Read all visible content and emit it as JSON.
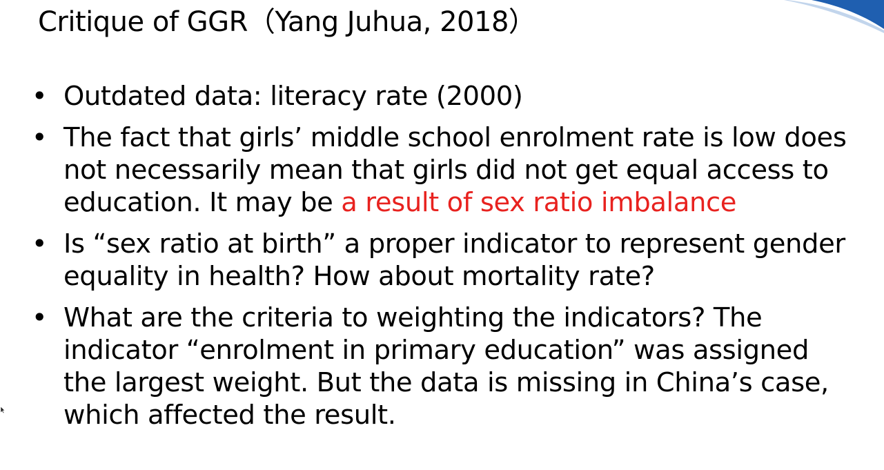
{
  "slide": {
    "title": "Critique of GGR（Yang Juhua, 2018）",
    "accent_color": "#1f5fb0",
    "highlight_color": "#e8221f",
    "bullet_glyph": "•",
    "bullets": [
      {
        "text": "Outdated data: literacy rate (2000)"
      },
      {
        "text_before": "The fact that girls’ middle school enrolment rate is low does not necessarily mean that girls did not get equal access to education. It may be ",
        "highlight": "a result of sex ratio imbalance"
      },
      {
        "text": "Is “sex ratio at birth” a proper indicator to represent gender equality in health? How about mortality rate?"
      },
      {
        "text": "What are the criteria to weighting the indicators? The indicator “enrolment in primary education” was assigned the largest weight. But the data is missing in China’s case, which affected the result."
      }
    ]
  }
}
